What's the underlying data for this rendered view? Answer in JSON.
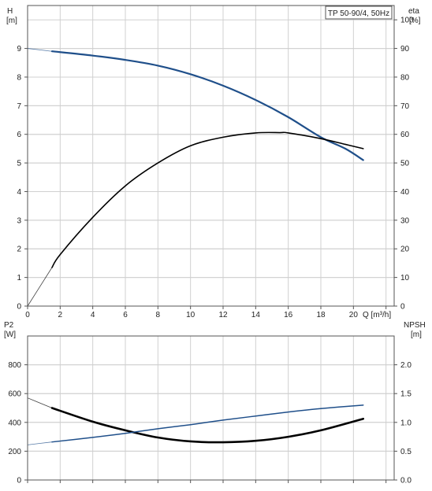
{
  "chart_data": [
    {
      "type": "line",
      "title": "TP 50-90/4, 50Hz",
      "xlabel": "Q [m³/h]",
      "ylabel": "H",
      "ylabel_unit": "[m]",
      "y2label": "eta",
      "y2label_unit": "[%]",
      "xlim": [
        0,
        22.5
      ],
      "ylim": [
        0,
        10.5
      ],
      "y2lim": [
        0,
        105
      ],
      "x_ticks": [
        "0",
        "2",
        "4",
        "6",
        "8",
        "10",
        "12",
        "14",
        "16",
        "18",
        "20"
      ],
      "y_ticks": [
        "0",
        "1",
        "2",
        "3",
        "4",
        "5",
        "6",
        "7",
        "8",
        "9"
      ],
      "y2_ticks": [
        "0",
        "10",
        "20",
        "30",
        "40",
        "50",
        "60",
        "70",
        "80",
        "90",
        "100"
      ],
      "grid": true,
      "series": [
        {
          "name": "H",
          "axis": "left",
          "color": "#1f4f8a",
          "x": [
            0,
            1.5,
            4,
            6,
            8,
            10,
            12,
            14,
            16,
            18,
            19.5,
            20.6
          ],
          "y": [
            9.0,
            8.9,
            8.75,
            8.6,
            8.4,
            8.1,
            7.7,
            7.2,
            6.6,
            5.9,
            5.5,
            5.1
          ],
          "extrapolated_below_x": 1.5
        },
        {
          "name": "eta",
          "axis": "right",
          "color": "#000000",
          "x": [
            0,
            1.5,
            2,
            4,
            6,
            8,
            10,
            12,
            14,
            15.5,
            16,
            18,
            19.5,
            20.6
          ],
          "y": [
            0,
            13.5,
            18,
            31,
            42,
            50,
            56,
            59,
            60.5,
            60.6,
            60.5,
            58.5,
            56.5,
            55
          ],
          "extrapolated_below_x": 1.5
        }
      ]
    },
    {
      "type": "line",
      "xlabel": "",
      "ylabel": "P2",
      "ylabel_unit": "[W]",
      "y2label": "NPSH",
      "y2label_unit": "[m]",
      "xlim": [
        0,
        22.5
      ],
      "ylim": [
        0,
        1000
      ],
      "y2lim": [
        0,
        2.5
      ],
      "y_ticks": [
        "0",
        "200",
        "400",
        "600",
        "800"
      ],
      "y2_ticks": [
        "0.0",
        "0.5",
        "1.0",
        "1.5",
        "2.0"
      ],
      "grid": true,
      "series": [
        {
          "name": "P2",
          "axis": "left",
          "color": "#000000",
          "x": [
            0,
            1.5,
            4,
            6,
            8,
            10,
            12,
            14,
            16,
            18,
            20.6
          ],
          "y": [
            570,
            500,
            405,
            345,
            295,
            268,
            262,
            272,
            300,
            345,
            425
          ],
          "extrapolated_below_x": 1.5
        },
        {
          "name": "NPSH",
          "axis": "right",
          "color": "#1f4f8a",
          "x": [
            0,
            1.5,
            4,
            6,
            8,
            10,
            12,
            14,
            16,
            18,
            20.6
          ],
          "y": [
            0.61,
            0.66,
            0.74,
            0.81,
            0.89,
            0.96,
            1.04,
            1.11,
            1.18,
            1.24,
            1.3
          ],
          "extrapolated_below_x": 1.5
        }
      ]
    }
  ]
}
